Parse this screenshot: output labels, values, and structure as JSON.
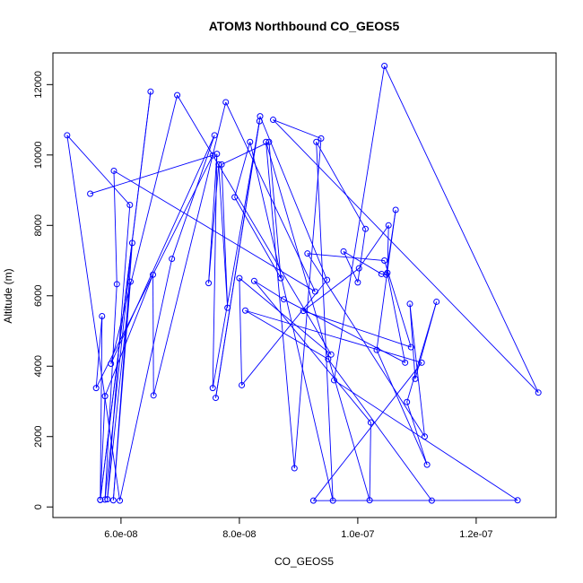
{
  "chart_data": {
    "type": "line",
    "title": "ATOM3 Northbound CO_GEOS5",
    "xlabel": "CO_GEOS5",
    "ylabel": "Altitude (m)",
    "xlim": [
      4.85e-08,
      1.335e-07
    ],
    "ylim": [
      -300,
      12900
    ],
    "x_ticks": [
      6e-08,
      8e-08,
      1e-07,
      1.2e-07
    ],
    "x_tick_labels": [
      "6.0e-08",
      "8.0e-08",
      "1.0e-07",
      "1.2e-07"
    ],
    "y_ticks": [
      0,
      2000,
      4000,
      6000,
      8000,
      10000,
      12000
    ],
    "y_tick_labels": [
      "0",
      "2000",
      "4000",
      "6000",
      "8000",
      "10000",
      "12000"
    ],
    "colors": {
      "series": "#0000ff",
      "axis": "#000000"
    },
    "series": [
      {
        "x": [
          5.48e-08,
          7.55e-08,
          5.58e-08,
          5.68e-08,
          5.65e-08,
          6.5e-08,
          5.65e-08,
          5.73e-08,
          6.54e-08,
          6.55e-08,
          7.77e-08,
          9.28e-08,
          5.88e-08,
          5.93e-08,
          5.73e-08,
          6.19e-08,
          5.87e-08,
          6.16e-08,
          5.77e-08,
          6.15e-08,
          5.09e-08,
          5.98e-08,
          6.86e-08,
          7.58e-08,
          5.83e-08,
          6.95e-08,
          9.55e-08,
          8e-08,
          8.04e-08,
          9.48e-08,
          8.35e-08,
          7.6e-08,
          8.34e-08,
          7.55e-08,
          7.62e-08,
          7.48e-08,
          7.65e-08,
          7.8e-08,
          7.7e-08,
          8.5e-08,
          8.7e-08,
          7.92e-08,
          8.18e-08,
          9.58e-08,
          9.3e-08,
          1.013e-07,
          1e-07,
          9.76e-08,
          1.04e-07,
          1.048e-07,
          1.064e-07,
          1.032e-07,
          1.117e-07,
          1.083e-07,
          1.133e-07,
          1.097e-07,
          1.088e-07,
          1.113e-07,
          9.15e-08,
          1.045e-07,
          1.09e-07,
          9.08e-08,
          1.002e-07,
          1.052e-07,
          1.05e-07,
          1.08e-07,
          8.75e-08,
          8.25e-08,
          1.022e-07,
          1.02e-07,
          8.45e-08,
          8.93e-08,
          9.38e-08,
          8.57e-08,
          1.305e-07,
          1.045e-07,
          9.6e-08,
          1.27e-07,
          9.25e-08,
          1.108e-07,
          8.1e-08,
          9.5e-08,
          1.125e-07
        ],
        "y": [
          8900,
          9990,
          3380,
          5420,
          200,
          11800,
          200,
          3150,
          6600,
          3170,
          11500,
          6120,
          9550,
          6330,
          210,
          7500,
          190,
          6400,
          220,
          8580,
          10560,
          180,
          7050,
          10560,
          4070,
          11700,
          4330,
          6500,
          3460,
          6450,
          11100,
          3100,
          10960,
          3380,
          10030,
          6360,
          9730,
          5660,
          9730,
          10370,
          6500,
          8800,
          10370,
          180,
          10370,
          7900,
          6380,
          7260,
          6620,
          6600,
          8440,
          4460,
          1200,
          2980,
          5830,
          3640,
          5770,
          2000,
          7200,
          7000,
          4540,
          5570,
          6780,
          8000,
          6650,
          4100,
          5900,
          6420,
          2400,
          190,
          10370,
          1100,
          10470,
          11000,
          3250,
          12530,
          3600,
          190,
          180,
          4100,
          5580,
          4200,
          180
        ]
      }
    ]
  }
}
